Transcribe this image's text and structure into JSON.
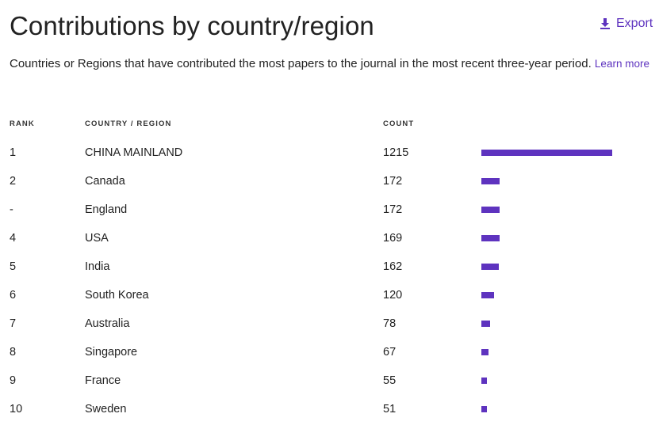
{
  "header": {
    "title": "Contributions by country/region",
    "export_label": "Export"
  },
  "description": {
    "text": "Countries or Regions that have contributed the most papers to the journal in the most recent three-year period.",
    "learn_more": "Learn more"
  },
  "table": {
    "columns": [
      "RANK",
      "COUNTRY / REGION",
      "COUNT"
    ],
    "rows": [
      {
        "rank": "1",
        "country": "CHINA MAINLAND",
        "count": "1215"
      },
      {
        "rank": "2",
        "country": "Canada",
        "count": "172"
      },
      {
        "rank": "-",
        "country": "England",
        "count": "172"
      },
      {
        "rank": "4",
        "country": "USA",
        "count": "169"
      },
      {
        "rank": "5",
        "country": "India",
        "count": "162"
      },
      {
        "rank": "6",
        "country": "South Korea",
        "count": "120"
      },
      {
        "rank": "7",
        "country": "Australia",
        "count": "78"
      },
      {
        "rank": "8",
        "country": "Singapore",
        "count": "67"
      },
      {
        "rank": "9",
        "country": "France",
        "count": "55"
      },
      {
        "rank": "10",
        "country": "Sweden",
        "count": "51"
      }
    ]
  },
  "colors": {
    "accent": "#5e33bf",
    "text": "#222222"
  },
  "icons": {
    "export": "download-icon"
  }
}
